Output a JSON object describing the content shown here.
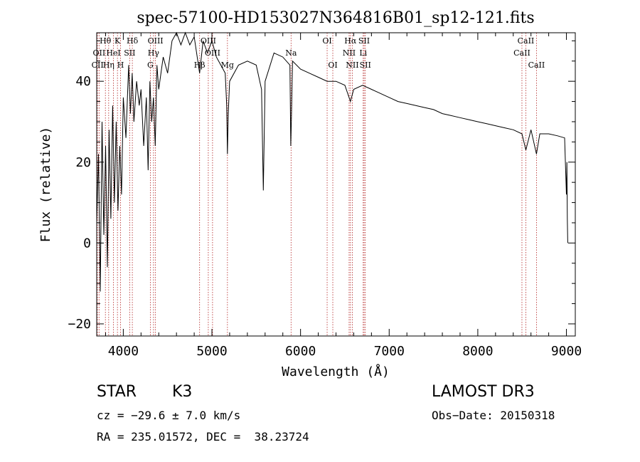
{
  "chart_data": {
    "type": "line",
    "title": "spec-57100-HD153027N364816B01_sp12-121.fits",
    "xlabel": "Wavelength (Å)",
    "ylabel": "Flux (relative)",
    "xlim": [
      3700,
      9100
    ],
    "ylim": [
      -23,
      52
    ],
    "x_ticks": [
      4000,
      5000,
      6000,
      7000,
      8000,
      9000
    ],
    "y_ticks": [
      -20,
      0,
      20,
      40
    ],
    "grid": false,
    "legend": "none",
    "series": [
      {
        "name": "flux",
        "points": [
          [
            3700,
            5
          ],
          [
            3720,
            22
          ],
          [
            3740,
            -12
          ],
          [
            3760,
            30
          ],
          [
            3780,
            2
          ],
          [
            3800,
            24
          ],
          [
            3820,
            -6
          ],
          [
            3840,
            28
          ],
          [
            3860,
            6
          ],
          [
            3880,
            34
          ],
          [
            3900,
            10
          ],
          [
            3920,
            30
          ],
          [
            3940,
            8
          ],
          [
            3960,
            24
          ],
          [
            3980,
            12
          ],
          [
            4000,
            36
          ],
          [
            4030,
            26
          ],
          [
            4060,
            44
          ],
          [
            4080,
            32
          ],
          [
            4100,
            42
          ],
          [
            4120,
            30
          ],
          [
            4150,
            40
          ],
          [
            4180,
            34
          ],
          [
            4200,
            38
          ],
          [
            4230,
            24
          ],
          [
            4260,
            36
          ],
          [
            4280,
            18
          ],
          [
            4300,
            40
          ],
          [
            4320,
            30
          ],
          [
            4340,
            36
          ],
          [
            4360,
            24
          ],
          [
            4380,
            44
          ],
          [
            4400,
            38
          ],
          [
            4450,
            46
          ],
          [
            4500,
            42
          ],
          [
            4550,
            50
          ],
          [
            4600,
            52
          ],
          [
            4650,
            49
          ],
          [
            4700,
            52
          ],
          [
            4750,
            49
          ],
          [
            4800,
            51
          ],
          [
            4861,
            42
          ],
          [
            4900,
            50
          ],
          [
            4950,
            47
          ],
          [
            5000,
            50
          ],
          [
            5050,
            46
          ],
          [
            5100,
            44
          ],
          [
            5150,
            42
          ],
          [
            5167,
            34
          ],
          [
            5175,
            22
          ],
          [
            5184,
            32
          ],
          [
            5200,
            40
          ],
          [
            5300,
            44
          ],
          [
            5400,
            45
          ],
          [
            5500,
            44
          ],
          [
            5560,
            38
          ],
          [
            5580,
            13
          ],
          [
            5600,
            40
          ],
          [
            5700,
            47
          ],
          [
            5800,
            46
          ],
          [
            5880,
            44
          ],
          [
            5890,
            24
          ],
          [
            5896,
            30
          ],
          [
            5910,
            45
          ],
          [
            6000,
            43
          ],
          [
            6100,
            42
          ],
          [
            6200,
            41
          ],
          [
            6300,
            40
          ],
          [
            6400,
            40
          ],
          [
            6500,
            39
          ],
          [
            6563,
            35
          ],
          [
            6600,
            38
          ],
          [
            6700,
            39
          ],
          [
            6800,
            38
          ],
          [
            6900,
            37
          ],
          [
            7000,
            36
          ],
          [
            7100,
            35
          ],
          [
            7200,
            34.5
          ],
          [
            7300,
            34
          ],
          [
            7400,
            33.5
          ],
          [
            7500,
            33
          ],
          [
            7600,
            32
          ],
          [
            7700,
            31.5
          ],
          [
            7800,
            31
          ],
          [
            7900,
            30.5
          ],
          [
            8000,
            30
          ],
          [
            8100,
            29.5
          ],
          [
            8200,
            29
          ],
          [
            8300,
            28.5
          ],
          [
            8400,
            28
          ],
          [
            8498,
            27
          ],
          [
            8542,
            23
          ],
          [
            8600,
            28
          ],
          [
            8662,
            22
          ],
          [
            8700,
            27
          ],
          [
            8800,
            27
          ],
          [
            8900,
            26.5
          ],
          [
            8980,
            26
          ],
          [
            9000,
            12
          ],
          [
            9005,
            20
          ],
          [
            9010,
            6
          ],
          [
            9015,
            0
          ]
        ]
      }
    ],
    "lines": [
      {
        "label": "Hθ",
        "wavelength": 3798,
        "row": 0
      },
      {
        "label": "OII",
        "wavelength": 3727,
        "row": 1
      },
      {
        "label": "CII",
        "wavelength": 3709,
        "row": 2
      },
      {
        "label": "Hη",
        "wavelength": 3835,
        "row": 2
      },
      {
        "label": "HeI",
        "wavelength": 3889,
        "row": 1
      },
      {
        "label": "K",
        "wavelength": 3934,
        "row": 0
      },
      {
        "label": "H",
        "wavelength": 3969,
        "row": 2
      },
      {
        "label": "SII",
        "wavelength": 4072,
        "row": 1
      },
      {
        "label": "Hδ",
        "wavelength": 4102,
        "row": 0
      },
      {
        "label": "OIII",
        "wavelength": 4363,
        "row": 0
      },
      {
        "label": "Hγ",
        "wavelength": 4341,
        "row": 1
      },
      {
        "label": "G",
        "wavelength": 4305,
        "row": 2
      },
      {
        "label": "Hβ",
        "wavelength": 4861,
        "row": 2
      },
      {
        "label": "OIII",
        "wavelength": 4959,
        "row": 0
      },
      {
        "label": "OIII",
        "wavelength": 5007,
        "row": 1
      },
      {
        "label": "Mg",
        "wavelength": 5175,
        "row": 2
      },
      {
        "label": "Na",
        "wavelength": 5893,
        "row": 1
      },
      {
        "label": "OI",
        "wavelength": 6300,
        "row": 0
      },
      {
        "label": "OI",
        "wavelength": 6364,
        "row": 2
      },
      {
        "label": "Hα",
        "wavelength": 6563,
        "row": 0
      },
      {
        "label": "NII",
        "wavelength": 6548,
        "row": 1
      },
      {
        "label": "NII",
        "wavelength": 6584,
        "row": 2
      },
      {
        "label": "SII",
        "wavelength": 6717,
        "row": 0
      },
      {
        "label": "Li",
        "wavelength": 6707,
        "row": 1
      },
      {
        "label": "SII",
        "wavelength": 6731,
        "row": 2
      },
      {
        "label": "CaII",
        "wavelength": 8542,
        "row": 0
      },
      {
        "label": "CaII",
        "wavelength": 8498,
        "row": 1
      },
      {
        "label": "CaII",
        "wavelength": 8662,
        "row": 2
      }
    ]
  },
  "info": {
    "class": "STAR",
    "subclass": "K3",
    "survey": "LAMOST DR3",
    "cz": "cz = −29.6 ± 7.0 km/s",
    "obs_date": "Obs−Date: 20150318",
    "coords": "RA = 235.01572, DEC =  38.23724"
  }
}
